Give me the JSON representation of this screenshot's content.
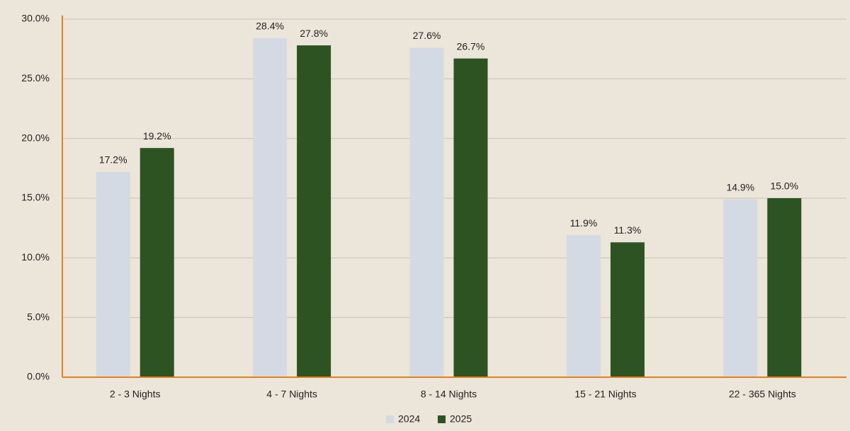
{
  "chart_data": {
    "type": "bar",
    "categories": [
      "2 - 3 Nights",
      "4 - 7 Nights",
      "8 - 14 Nights",
      "15 - 21 Nights",
      "22 - 365 Nights"
    ],
    "series": [
      {
        "name": "2024",
        "color": "#d4dae3",
        "values": [
          17.2,
          28.4,
          27.6,
          11.9,
          14.9
        ],
        "value_labels": [
          "17.2%",
          "28.4%",
          "27.6%",
          "11.9%",
          "14.9%"
        ]
      },
      {
        "name": "2025",
        "color": "#2d5322",
        "values": [
          19.2,
          27.8,
          26.7,
          11.3,
          15.0
        ],
        "value_labels": [
          "19.2%",
          "27.8%",
          "26.7%",
          "11.3%",
          "15.0%"
        ]
      }
    ],
    "ylim": [
      0,
      30
    ],
    "yticks": [
      {
        "value": 0,
        "label": "0.0%"
      },
      {
        "value": 5,
        "label": "5.0%"
      },
      {
        "value": 10,
        "label": "10.0%"
      },
      {
        "value": 15,
        "label": "15.0%"
      },
      {
        "value": 20,
        "label": "20.0%"
      },
      {
        "value": 25,
        "label": "25.0%"
      },
      {
        "value": 30,
        "label": "30.0%"
      }
    ],
    "grid": true,
    "legend": "bottom"
  }
}
